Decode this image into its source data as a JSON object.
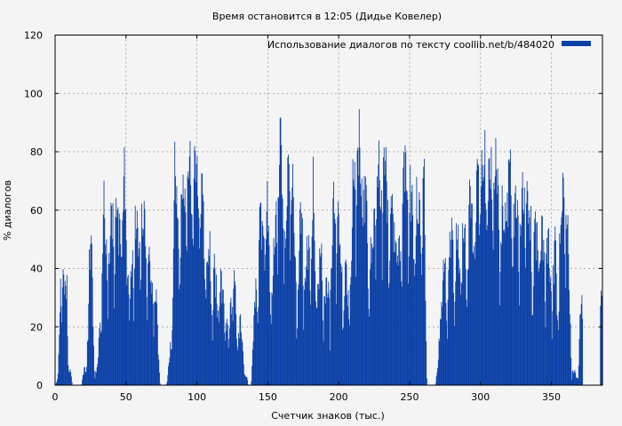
{
  "chart_data": {
    "type": "bar",
    "title": "Время остановится в 12:05 (Дидье Ковелер)",
    "xlabel": "Счетчик знаков (тыс.)",
    "ylabel": "% диалогов",
    "xlim": [
      0,
      386
    ],
    "ylim": [
      0,
      120
    ],
    "x_ticks": [
      0,
      50,
      100,
      150,
      200,
      250,
      300,
      350
    ],
    "y_ticks": [
      0,
      20,
      40,
      60,
      80,
      100,
      120
    ],
    "grid": true,
    "legend_position": "top-right",
    "series": [
      {
        "name": "Использование диалогов по тексту  coollib.net/b/484020",
        "color": "#0a3fa6",
        "envelope": {
          "x": [
            0,
            2,
            4,
            6,
            8,
            10,
            12,
            14,
            16,
            18,
            20,
            22,
            24,
            26,
            28,
            30,
            32,
            34,
            36,
            38,
            40,
            42,
            44,
            46,
            48,
            50,
            52,
            54,
            56,
            58,
            60,
            62,
            64,
            66,
            68,
            70,
            72,
            74,
            76,
            78,
            80,
            82,
            84,
            86,
            88,
            90,
            92,
            94,
            96,
            98,
            100,
            102,
            104,
            106,
            108,
            110,
            112,
            114,
            116,
            118,
            120,
            122,
            124,
            126,
            128,
            130,
            132,
            134,
            136,
            138,
            140,
            142,
            144,
            146,
            148,
            150,
            152,
            154,
            156,
            158,
            160,
            162,
            164,
            166,
            168,
            170,
            172,
            174,
            176,
            178,
            180,
            182,
            184,
            186,
            188,
            190,
            192,
            194,
            196,
            198,
            200,
            202,
            204,
            206,
            208,
            210,
            212,
            214,
            216,
            218,
            220,
            222,
            224,
            226,
            228,
            230,
            232,
            234,
            236,
            238,
            240,
            242,
            244,
            246,
            248,
            250,
            252,
            254,
            256,
            258,
            260,
            262,
            264,
            266,
            268,
            270,
            272,
            274,
            276,
            278,
            280,
            282,
            284,
            286,
            288,
            290,
            292,
            294,
            296,
            298,
            300,
            302,
            304,
            306,
            308,
            310,
            312,
            314,
            316,
            318,
            320,
            322,
            324,
            326,
            328,
            330,
            332,
            334,
            336,
            338,
            340,
            342,
            344,
            346,
            348,
            350,
            352,
            354,
            356,
            358,
            360,
            362,
            364,
            366,
            368,
            370,
            372,
            374,
            376,
            378,
            380,
            382,
            384
          ],
          "max": [
            0,
            5,
            51,
            48,
            45,
            8,
            0,
            0,
            0,
            0,
            7,
            7,
            58,
            47,
            5,
            12,
            30,
            72,
            60,
            58,
            72,
            76,
            63,
            76,
            85,
            86,
            28,
            50,
            72,
            60,
            74,
            72,
            58,
            49,
            50,
            49,
            22,
            0,
            0,
            0,
            10,
            20,
            94,
            60,
            70,
            84,
            79,
            85,
            86,
            88,
            90,
            87,
            70,
            47,
            63,
            45,
            48,
            35,
            52,
            34,
            40,
            18,
            42,
            42,
            25,
            36,
            14,
            7,
            0,
            0,
            32,
            45,
            68,
            60,
            78,
            69,
            41,
            53,
            77,
            95,
            88,
            72,
            82,
            86,
            76,
            40,
            62,
            72,
            44,
            55,
            65,
            80,
            42,
            46,
            54,
            40,
            42,
            49,
            72,
            70,
            68,
            52,
            47,
            38,
            46,
            85,
            99,
            96,
            96,
            80,
            62,
            60,
            62,
            82,
            84,
            86,
            94,
            84,
            68,
            68,
            72,
            54,
            76,
            88,
            86,
            82,
            68,
            80,
            74,
            72,
            82,
            0,
            0,
            0,
            0,
            10,
            44,
            52,
            44,
            54,
            62,
            55,
            66,
            55,
            62,
            56,
            72,
            82,
            72,
            82,
            87,
            91,
            97,
            80,
            90,
            92,
            78,
            74,
            72,
            85,
            82,
            84,
            80,
            70,
            79,
            72,
            86,
            74,
            66,
            60,
            62,
            70,
            60,
            66,
            58,
            42,
            58,
            38,
            72,
            78,
            73,
            52,
            8,
            6,
            3,
            28,
            34
          ],
          "min": [
            0,
            0,
            10,
            5,
            2,
            0,
            0,
            0,
            0,
            0,
            0,
            0,
            20,
            5,
            0,
            0,
            10,
            20,
            18,
            15,
            20,
            20,
            10,
            18,
            20,
            20,
            5,
            10,
            20,
            15,
            20,
            15,
            12,
            8,
            10,
            8,
            2,
            0,
            0,
            0,
            0,
            5,
            30,
            20,
            25,
            30,
            25,
            30,
            30,
            30,
            35,
            30,
            20,
            10,
            15,
            8,
            10,
            5,
            10,
            5,
            8,
            2,
            8,
            5,
            3,
            5,
            1,
            0,
            0,
            0,
            5,
            10,
            20,
            15,
            25,
            20,
            8,
            10,
            20,
            35,
            30,
            20,
            25,
            30,
            20,
            5,
            15,
            20,
            8,
            10,
            15,
            25,
            8,
            10,
            12,
            8,
            8,
            10,
            20,
            20,
            15,
            10,
            8,
            5,
            8,
            25,
            35,
            30,
            30,
            20,
            15,
            12,
            15,
            25,
            25,
            30,
            35,
            25,
            18,
            15,
            20,
            10,
            20,
            25,
            25,
            20,
            15,
            20,
            18,
            15,
            20,
            0,
            0,
            0,
            0,
            2,
            10,
            10,
            8,
            10,
            15,
            10,
            15,
            10,
            15,
            10,
            20,
            25,
            20,
            25,
            30,
            35,
            35,
            25,
            30,
            30,
            20,
            18,
            18,
            25,
            20,
            25,
            20,
            15,
            20,
            15,
            25,
            18,
            12,
            10,
            12,
            15,
            10,
            12,
            10,
            5,
            10,
            5,
            20,
            25,
            20,
            10,
            1,
            0,
            0,
            5,
            8
          ]
        }
      }
    ]
  }
}
